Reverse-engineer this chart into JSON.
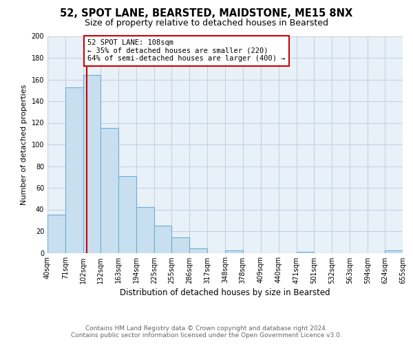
{
  "title": "52, SPOT LANE, BEARSTED, MAIDSTONE, ME15 8NX",
  "subtitle": "Size of property relative to detached houses in Bearsted",
  "xlabel": "Distribution of detached houses by size in Bearsted",
  "ylabel": "Number of detached properties",
  "bin_edges": [
    40,
    71,
    102,
    132,
    163,
    194,
    225,
    255,
    286,
    317,
    348,
    378,
    409,
    440,
    471,
    501,
    532,
    563,
    594,
    624,
    655
  ],
  "bar_heights": [
    35,
    153,
    164,
    115,
    71,
    42,
    25,
    14,
    4,
    0,
    2,
    0,
    0,
    0,
    1,
    0,
    0,
    0,
    0,
    2
  ],
  "bar_color": "#c8dff0",
  "bar_edge_color": "#6baed6",
  "plot_bg_color": "#e8f0f8",
  "property_line_x": 108,
  "property_line_color": "#cc0000",
  "annotation_line1": "52 SPOT LANE: 108sqm",
  "annotation_line2": "← 35% of detached houses are smaller (220)",
  "annotation_line3": "64% of semi-detached houses are larger (400) →",
  "ylim": [
    0,
    200
  ],
  "yticks": [
    0,
    20,
    40,
    60,
    80,
    100,
    120,
    140,
    160,
    180,
    200
  ],
  "tick_labels": [
    "40sqm",
    "71sqm",
    "102sqm",
    "132sqm",
    "163sqm",
    "194sqm",
    "225sqm",
    "255sqm",
    "286sqm",
    "317sqm",
    "348sqm",
    "378sqm",
    "409sqm",
    "440sqm",
    "471sqm",
    "501sqm",
    "532sqm",
    "563sqm",
    "594sqm",
    "624sqm",
    "655sqm"
  ],
  "footer_line1": "Contains HM Land Registry data © Crown copyright and database right 2024.",
  "footer_line2": "Contains public sector information licensed under the Open Government Licence v3.0.",
  "background_color": "#ffffff",
  "grid_color": "#c0cfe0",
  "title_fontsize": 10.5,
  "subtitle_fontsize": 9,
  "ylabel_fontsize": 8,
  "xlabel_fontsize": 8.5,
  "tick_fontsize": 7,
  "annotation_fontsize": 7.5,
  "footer_fontsize": 6.5
}
